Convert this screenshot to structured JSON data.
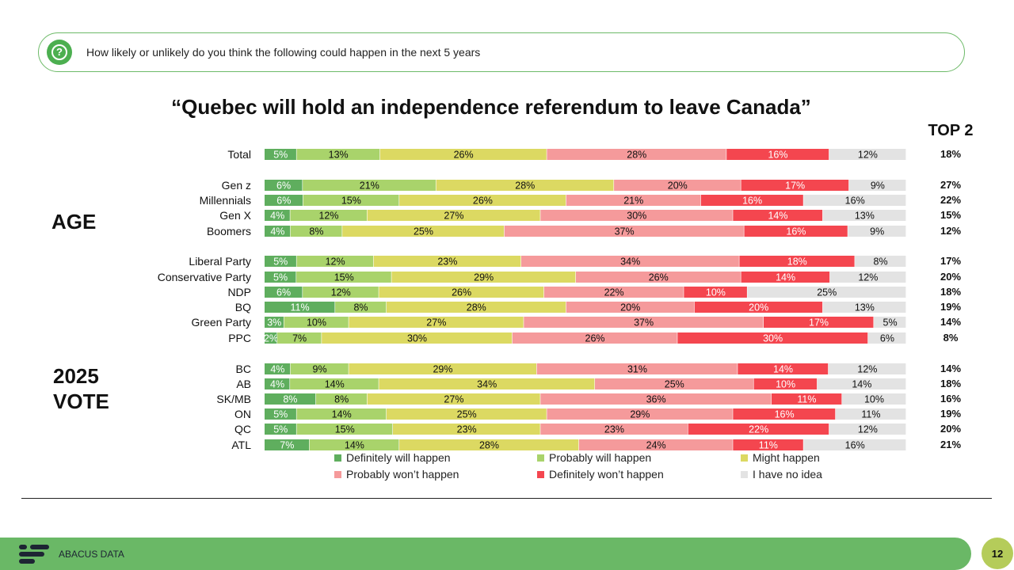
{
  "question": "How likely or unlikely do you think the following could happen in the next 5 years",
  "top2_header": "TOP 2",
  "group_labels": {
    "age": "AGE",
    "vote_line1": "2025",
    "vote_line2": "VOTE"
  },
  "brand": "ABACUS DATA",
  "page_number": "12",
  "colors": {
    "definitely_will": "#5fae5e",
    "probably_will": "#a9d36b",
    "might": "#dcd962",
    "probably_wont": "#f59a9b",
    "definitely_wont": "#f4464f",
    "no_idea": "#e3e3e3",
    "accent_green": "#6ab866",
    "page_badge": "#b5cc5a"
  },
  "chart_data": {
    "type": "bar",
    "orientation": "horizontal",
    "stacked": true,
    "title": "“Quebec will hold an independence referendum to leave Canada”",
    "series": [
      {
        "name": "Definitely will happen"
      },
      {
        "name": "Probably will happen"
      },
      {
        "name": "Might happen"
      },
      {
        "name": "Probably won’t happen"
      },
      {
        "name": "Definitely won’t happen"
      },
      {
        "name": "I have no idea"
      }
    ],
    "rows": [
      {
        "label": "Total",
        "values": [
          5,
          13,
          26,
          28,
          16,
          12
        ],
        "top2": "18%"
      },
      {
        "label": "Gen z",
        "values": [
          6,
          21,
          28,
          20,
          17,
          9
        ],
        "top2": "27%"
      },
      {
        "label": "Millennials",
        "values": [
          6,
          15,
          26,
          21,
          16,
          16
        ],
        "top2": "22%"
      },
      {
        "label": "Gen X",
        "values": [
          4,
          12,
          27,
          30,
          14,
          13
        ],
        "top2": "15%"
      },
      {
        "label": "Boomers",
        "values": [
          4,
          8,
          25,
          37,
          16,
          9
        ],
        "top2": "12%"
      },
      {
        "label": "Liberal Party",
        "values": [
          5,
          12,
          23,
          34,
          18,
          8
        ],
        "top2": "17%"
      },
      {
        "label": "Conservative Party",
        "values": [
          5,
          15,
          29,
          26,
          14,
          12
        ],
        "top2": "20%"
      },
      {
        "label": "NDP",
        "values": [
          6,
          12,
          26,
          22,
          10,
          25
        ],
        "top2": "18%"
      },
      {
        "label": "BQ",
        "values": [
          11,
          8,
          28,
          20,
          20,
          13
        ],
        "top2": "19%"
      },
      {
        "label": "Green Party",
        "values": [
          3,
          10,
          27,
          37,
          17,
          5
        ],
        "top2": "14%"
      },
      {
        "label": "PPC",
        "values": [
          2,
          7,
          30,
          26,
          30,
          6
        ],
        "top2": "8%"
      },
      {
        "label": "BC",
        "values": [
          4,
          9,
          29,
          31,
          14,
          12
        ],
        "top2": "14%"
      },
      {
        "label": "AB",
        "values": [
          4,
          14,
          34,
          25,
          10,
          14
        ],
        "top2": "18%"
      },
      {
        "label": "SK/MB",
        "values": [
          8,
          8,
          27,
          36,
          11,
          10
        ],
        "top2": "16%"
      },
      {
        "label": "ON",
        "values": [
          5,
          14,
          25,
          29,
          16,
          11
        ],
        "top2": "19%"
      },
      {
        "label": "QC",
        "values": [
          5,
          15,
          23,
          23,
          22,
          12
        ],
        "top2": "20%"
      },
      {
        "label": "ATL",
        "values": [
          7,
          14,
          28,
          24,
          11,
          16
        ],
        "top2": "21%"
      }
    ],
    "xlim": [
      0,
      100
    ],
    "legend_position": "bottom"
  }
}
